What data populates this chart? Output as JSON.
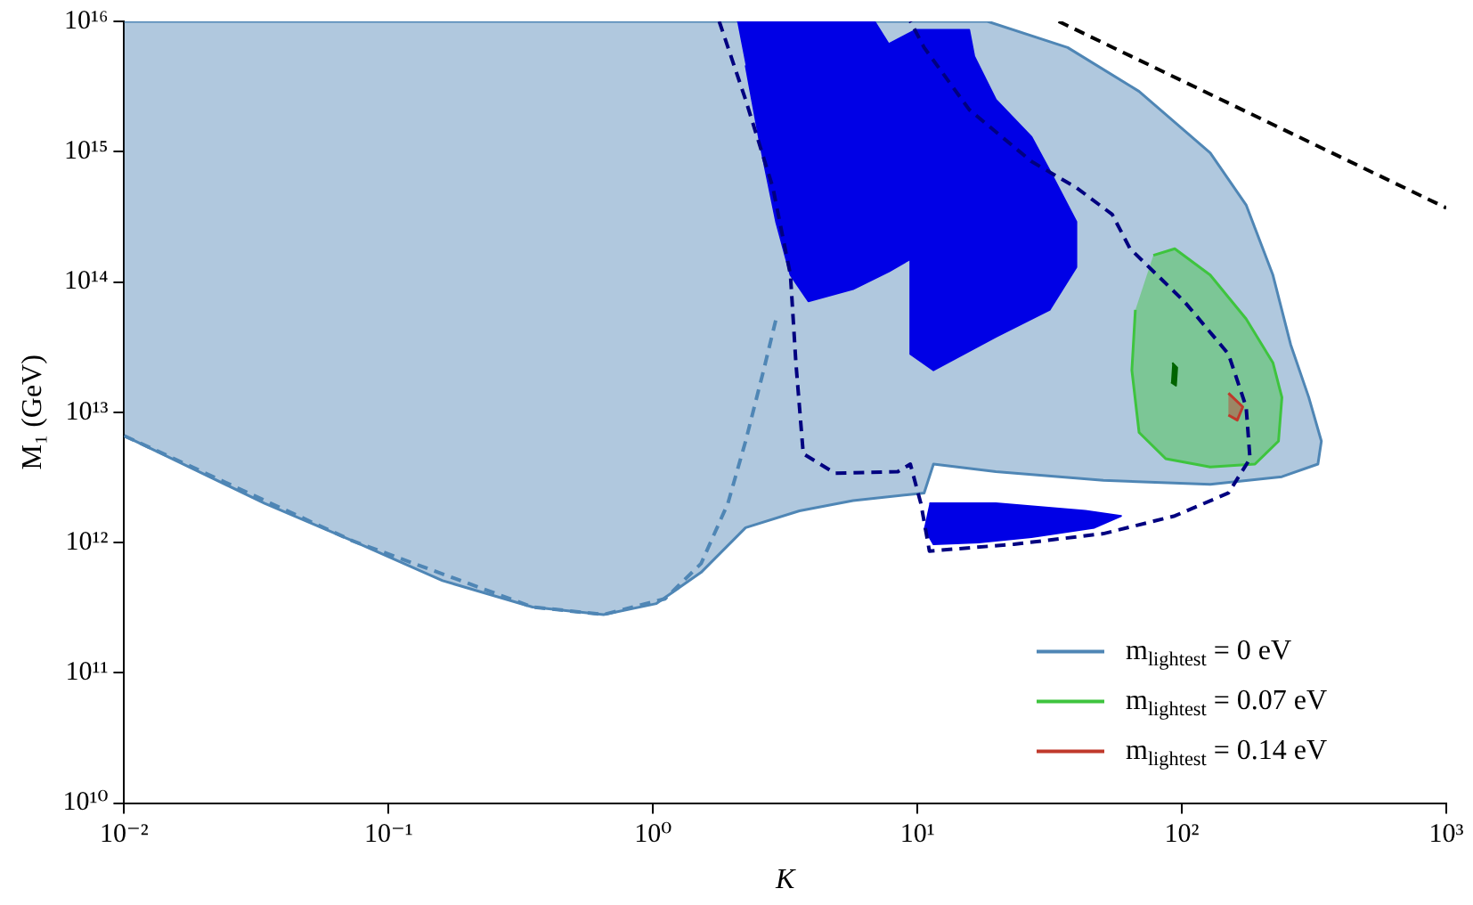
{
  "chart_data": {
    "type": "area",
    "xlabel": "K",
    "ylabel": "M₁ (GeV)",
    "log": "xy",
    "grid": false,
    "legend": "bottom right",
    "marker": "none",
    "xlim": [
      0.01,
      1000
    ],
    "ylim": [
      10000000000.0,
      1e+16
    ],
    "xticks": [
      {
        "value": 0.01,
        "label": "10⁻²"
      },
      {
        "value": 0.1,
        "label": "10⁻¹"
      },
      {
        "value": 1,
        "label": "10⁰"
      },
      {
        "value": 10,
        "label": "10¹"
      },
      {
        "value": 100,
        "label": "10²"
      },
      {
        "value": 1000,
        "label": "10³"
      }
    ],
    "yticks": [
      {
        "value": 10000000000.0,
        "label": "10¹⁰"
      },
      {
        "value": 100000000000.0,
        "label": "10¹¹"
      },
      {
        "value": 1000000000000.0,
        "label": "10¹²"
      },
      {
        "value": 10000000000000.0,
        "label": "10¹³"
      },
      {
        "value": 100000000000000.0,
        "label": "10¹⁴"
      },
      {
        "value": 1000000000000000.0,
        "label": "10¹⁵"
      },
      {
        "value": 1e+16,
        "label": "10¹⁶"
      }
    ],
    "series": [
      {
        "name": "m$_{lightest}$ = 0 eV",
        "color": "#4f86b5",
        "x": [
          0.01,
          18.4,
          37.0,
          68.9,
          128,
          175,
          221,
          258,
          302,
          337,
          327,
          239,
          128,
          50.5,
          19.8,
          11.5,
          10.6,
          5.71,
          3.58,
          2.24,
          1.52,
          1.03,
          0.65,
          0.35,
          0.16,
          0.073,
          0.034,
          0.01
        ],
        "values": [
          1e+16,
          1e+16,
          6300000000000000.0,
          2900000000000000.0,
          980000000000000.0,
          390000000000000.0,
          113000000000000.0,
          33000000000000.0,
          13000000000000.0,
          6000000000000.0,
          4000000000000.0,
          3200000000000.0,
          2800000000000.0,
          3000000000000.0,
          3500000000000.0,
          4000000000000.0,
          2400000000000.0,
          2100000000000.0,
          1750000000000.0,
          1300000000000.0,
          590000000000.0,
          340000000000.0,
          280000000000.0,
          320000000000.0,
          510000000000.0,
          1030000000000.0,
          2000000000000.0,
          6600000000000.0
        ]
      },
      {
        "color": "#0000e6",
        "x": [
          2.08,
          6.88,
          7.79,
          9.85,
          15.7,
          16.4,
          19.8,
          27.0,
          31.6,
          39.9,
          39.9,
          31.6,
          19.8,
          11.5,
          9.4,
          9.4,
          7.79,
          5.71,
          3.87,
          3.31,
          2.92,
          2.54,
          2.24
        ],
        "values": [
          1e+16,
          1e+16,
          6700000000000000.0,
          8600000000000000.0,
          8600000000000000.0,
          5400000000000000.0,
          2500000000000000.0,
          1300000000000000.0,
          720000000000000.0,
          290000000000000.0,
          130000000000000.0,
          61000000000000.0,
          38000000000000.0,
          21000000000000.0,
          28000000000000.0,
          150000000000000.0,
          120000000000000.0,
          88000000000000.0,
          71000000000000.0,
          113000000000000.0,
          290000000000000.0,
          1150000000000000.0,
          4600000000000000.0
        ]
      },
      {
        "color": "#0000e6",
        "x": [
          11.1,
          19.8,
          43.2,
          58.9,
          46.7,
          27.0,
          17.0,
          11.5,
          10.6
        ],
        "values": [
          2000000000000.0,
          2000000000000.0,
          1750000000000.0,
          1600000000000.0,
          1300000000000.0,
          1100000000000.0,
          1000000000000.0,
          970000000000.0,
          1300000000000.0
        ]
      },
      {
        "type": "line",
        "line_style": "dashed",
        "color": "#4f86b5",
        "x": [
          0.01,
          0.073,
          0.35,
          0.65,
          1.11,
          1.52,
          1.92,
          2.24,
          2.62,
          2.92
        ],
        "values": [
          6600000000000.0,
          1030000000000.0,
          320000000000.0,
          280000000000.0,
          370000000000.0,
          690000000000.0,
          2000000000000.0,
          6000000000000.0,
          21000000000000.0,
          52000000000000.0
        ]
      },
      {
        "name": "m$_{lightest}$ = 0.07 eV",
        "color": "#3ec43e",
        "x": [
          78.0,
          94.0,
          128,
          175,
          221,
          239,
          232,
          189,
          128,
          86.9,
          68.9,
          64.7,
          66.7
        ],
        "values": [
          160000000000000.0,
          180000000000000.0,
          113000000000000.0,
          52000000000000.0,
          24000000000000.0,
          13000000000000.0,
          6000000000000.0,
          4000000000000.0,
          3800000000000.0,
          4400000000000.0,
          7000000000000.0,
          21000000000000.0,
          61000000000000.0
        ]
      },
      {
        "color": "#006400",
        "x": [
          92,
          96,
          95,
          91
        ],
        "values": [
          24000000000000.0,
          22000000000000.0,
          16000000000000.0,
          17000000000000.0
        ]
      },
      {
        "type": "line",
        "line_style": "dashed",
        "color": "#000080",
        "x": [
          1.78,
          2.24,
          2.84,
          3.31,
          3.47,
          3.7,
          4.89,
          8.43,
          9.4,
          10.3,
          11.1,
          23.2,
          50.5,
          94.0,
          150,
          181,
          175,
          150,
          102,
          63.7,
          54.5,
          39.9,
          27.0,
          15.7,
          10.6,
          9.4
        ],
        "values": [
          1e+16,
          2500000000000000.0,
          530000000000000.0,
          113000000000000.0,
          24000000000000.0,
          4800000000000.0,
          3400000000000.0,
          3500000000000.0,
          4000000000000.0,
          2000000000000.0,
          860000000000.0,
          970000000000.0,
          1170000000000.0,
          1600000000000.0,
          2400000000000.0,
          4400000000000.0,
          11000000000000.0,
          28000000000000.0,
          71000000000000.0,
          180000000000000.0,
          330000000000000.0,
          530000000000000.0,
          840000000000000.0,
          2100000000000000.0,
          6300000000000000.0,
          1e+16
        ]
      },
      {
        "name": "m$_{lightest}$ = 0.14 eV",
        "color": "#c0392b",
        "x": [
          150,
          170,
          162,
          150
        ],
        "values": [
          14000000000000.0,
          11000000000000.0,
          8700000000000.0,
          9500000000000.0
        ]
      },
      {
        "type": "line",
        "line_style": "dashed",
        "color": "#000000",
        "x": [
          34.2,
          1000
        ],
        "values": [
          1e+16,
          370000000000000.0
        ]
      }
    ]
  }
}
